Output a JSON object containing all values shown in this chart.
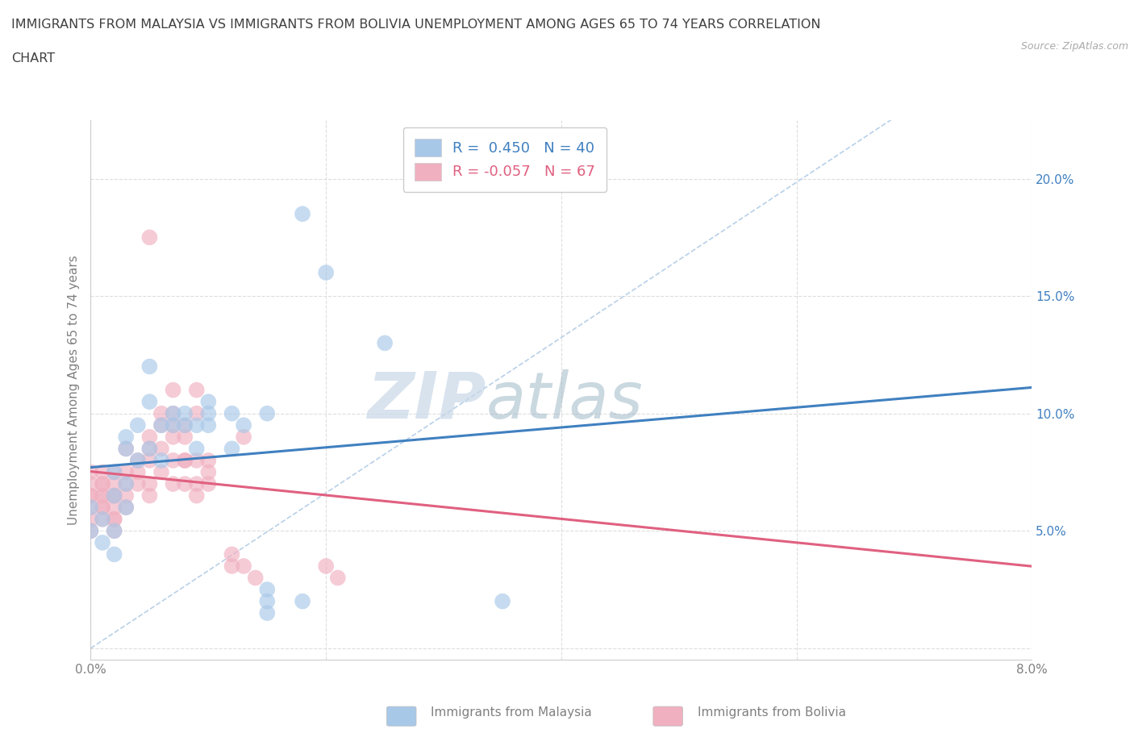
{
  "title_line1": "IMMIGRANTS FROM MALAYSIA VS IMMIGRANTS FROM BOLIVIA UNEMPLOYMENT AMONG AGES 65 TO 74 YEARS CORRELATION",
  "title_line2": "CHART",
  "source": "Source: ZipAtlas.com",
  "ylabel": "Unemployment Among Ages 65 to 74 years",
  "xlim": [
    0.0,
    0.08
  ],
  "ylim": [
    -0.005,
    0.225
  ],
  "xticks": [
    0.0,
    0.02,
    0.04,
    0.06,
    0.08
  ],
  "xticklabels": [
    "0.0%",
    "",
    "",
    "",
    "8.0%"
  ],
  "yticks": [
    0.0,
    0.05,
    0.1,
    0.15,
    0.2
  ],
  "yticklabels": [
    "",
    "5.0%",
    "10.0%",
    "15.0%",
    "20.0%"
  ],
  "malaysia_color": "#a8c8e8",
  "bolivia_color": "#f0b0c0",
  "malaysia_line_color": "#4080c0",
  "bolivia_line_color": "#e06080",
  "diagonal_color": "#b8d0e8",
  "r_malaysia": 0.45,
  "n_malaysia": 40,
  "r_bolivia": -0.057,
  "n_bolivia": 67,
  "malaysia_scatter": [
    [
      0.0,
      0.05
    ],
    [
      0.0,
      0.06
    ],
    [
      0.001,
      0.045
    ],
    [
      0.001,
      0.055
    ],
    [
      0.002,
      0.065
    ],
    [
      0.002,
      0.075
    ],
    [
      0.002,
      0.05
    ],
    [
      0.002,
      0.04
    ],
    [
      0.003,
      0.085
    ],
    [
      0.003,
      0.06
    ],
    [
      0.003,
      0.07
    ],
    [
      0.003,
      0.09
    ],
    [
      0.004,
      0.08
    ],
    [
      0.004,
      0.095
    ],
    [
      0.005,
      0.085
    ],
    [
      0.005,
      0.105
    ],
    [
      0.005,
      0.12
    ],
    [
      0.006,
      0.095
    ],
    [
      0.006,
      0.08
    ],
    [
      0.007,
      0.095
    ],
    [
      0.007,
      0.1
    ],
    [
      0.008,
      0.095
    ],
    [
      0.008,
      0.1
    ],
    [
      0.009,
      0.095
    ],
    [
      0.009,
      0.085
    ],
    [
      0.01,
      0.105
    ],
    [
      0.01,
      0.1
    ],
    [
      0.01,
      0.095
    ],
    [
      0.012,
      0.1
    ],
    [
      0.012,
      0.085
    ],
    [
      0.013,
      0.095
    ],
    [
      0.015,
      0.1
    ],
    [
      0.015,
      0.02
    ],
    [
      0.018,
      0.185
    ],
    [
      0.02,
      0.16
    ],
    [
      0.025,
      0.13
    ],
    [
      0.035,
      0.02
    ],
    [
      0.015,
      0.025
    ],
    [
      0.018,
      0.02
    ],
    [
      0.015,
      0.015
    ]
  ],
  "bolivia_scatter": [
    [
      0.0,
      0.06
    ],
    [
      0.0,
      0.065
    ],
    [
      0.0,
      0.07
    ],
    [
      0.0,
      0.075
    ],
    [
      0.0,
      0.05
    ],
    [
      0.0,
      0.055
    ],
    [
      0.0,
      0.065
    ],
    [
      0.001,
      0.06
    ],
    [
      0.001,
      0.07
    ],
    [
      0.001,
      0.055
    ],
    [
      0.001,
      0.065
    ],
    [
      0.001,
      0.075
    ],
    [
      0.001,
      0.06
    ],
    [
      0.001,
      0.07
    ],
    [
      0.001,
      0.065
    ],
    [
      0.002,
      0.055
    ],
    [
      0.002,
      0.07
    ],
    [
      0.002,
      0.075
    ],
    [
      0.002,
      0.06
    ],
    [
      0.002,
      0.065
    ],
    [
      0.002,
      0.055
    ],
    [
      0.002,
      0.065
    ],
    [
      0.003,
      0.06
    ],
    [
      0.003,
      0.07
    ],
    [
      0.003,
      0.065
    ],
    [
      0.003,
      0.075
    ],
    [
      0.003,
      0.085
    ],
    [
      0.004,
      0.07
    ],
    [
      0.004,
      0.08
    ],
    [
      0.004,
      0.075
    ],
    [
      0.005,
      0.07
    ],
    [
      0.005,
      0.08
    ],
    [
      0.005,
      0.085
    ],
    [
      0.005,
      0.09
    ],
    [
      0.005,
      0.065
    ],
    [
      0.006,
      0.075
    ],
    [
      0.006,
      0.085
    ],
    [
      0.006,
      0.095
    ],
    [
      0.006,
      0.1
    ],
    [
      0.007,
      0.07
    ],
    [
      0.007,
      0.08
    ],
    [
      0.007,
      0.09
    ],
    [
      0.007,
      0.095
    ],
    [
      0.007,
      0.1
    ],
    [
      0.008,
      0.08
    ],
    [
      0.008,
      0.09
    ],
    [
      0.008,
      0.095
    ],
    [
      0.008,
      0.07
    ],
    [
      0.008,
      0.08
    ],
    [
      0.009,
      0.07
    ],
    [
      0.009,
      0.08
    ],
    [
      0.009,
      0.1
    ],
    [
      0.009,
      0.065
    ],
    [
      0.01,
      0.07
    ],
    [
      0.01,
      0.08
    ],
    [
      0.01,
      0.075
    ],
    [
      0.012,
      0.035
    ],
    [
      0.012,
      0.04
    ],
    [
      0.013,
      0.09
    ],
    [
      0.013,
      0.035
    ],
    [
      0.014,
      0.03
    ],
    [
      0.02,
      0.035
    ],
    [
      0.021,
      0.03
    ],
    [
      0.005,
      0.175
    ],
    [
      0.007,
      0.11
    ],
    [
      0.009,
      0.11
    ],
    [
      0.002,
      0.05
    ]
  ],
  "background_color": "#ffffff",
  "grid_color": "#dddddd",
  "title_color": "#404040",
  "axis_color": "#808080",
  "legend_label_malaysia": "Immigrants from Malaysia",
  "legend_label_bolivia": "Immigrants from Bolivia",
  "watermark_zip": "ZIP",
  "watermark_atlas": "atlas",
  "watermark_color_zip": "#c8d8e8",
  "watermark_color_atlas": "#a0b8c8"
}
